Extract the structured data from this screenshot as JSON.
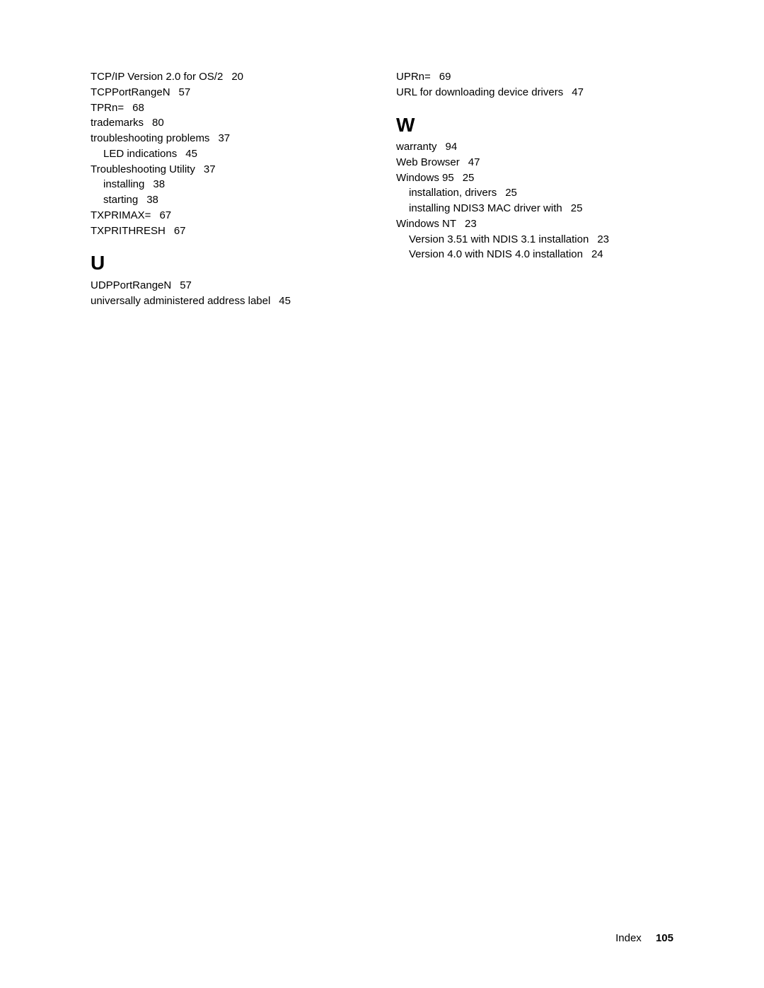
{
  "left": {
    "entries_top": [
      {
        "term": "TCP/IP Version 2.0 for OS/2",
        "page": "20",
        "indent": 0
      },
      {
        "term": "TCPPortRangeN",
        "page": "57",
        "indent": 0
      },
      {
        "term": "TPRn=",
        "page": "68",
        "indent": 0
      },
      {
        "term": "trademarks",
        "page": "80",
        "indent": 0
      },
      {
        "term": "troubleshooting problems",
        "page": "37",
        "indent": 0
      },
      {
        "term": "LED indications",
        "page": "45",
        "indent": 1
      },
      {
        "term": "Troubleshooting Utility",
        "page": "37",
        "indent": 0
      },
      {
        "term": "installing",
        "page": "38",
        "indent": 1
      },
      {
        "term": "starting",
        "page": "38",
        "indent": 1
      },
      {
        "term": "TXPRIMAX=",
        "page": "67",
        "indent": 0
      },
      {
        "term": "TXPRITHRESH",
        "page": "67",
        "indent": 0
      }
    ],
    "heading_u": "U",
    "entries_u": [
      {
        "term": "UDPPortRangeN",
        "page": "57",
        "indent": 0
      },
      {
        "term": "universally administered address label",
        "page": "45",
        "indent": 0
      }
    ]
  },
  "right": {
    "entries_top": [
      {
        "term": "UPRn=",
        "page": "69",
        "indent": 0
      },
      {
        "term": "URL for downloading device drivers",
        "page": "47",
        "indent": 0
      }
    ],
    "heading_w": "W",
    "entries_w": [
      {
        "term": "warranty",
        "page": "94",
        "indent": 0
      },
      {
        "term": "Web Browser",
        "page": "47",
        "indent": 0
      },
      {
        "term": "Windows 95",
        "page": "25",
        "indent": 0
      },
      {
        "term": "installation, drivers",
        "page": "25",
        "indent": 1
      },
      {
        "term": "installing NDIS3 MAC driver with",
        "page": "25",
        "indent": 1
      },
      {
        "term": "Windows NT",
        "page": "23",
        "indent": 0
      },
      {
        "term": "Version 3.51 with NDIS 3.1 installation",
        "page": "23",
        "indent": 1
      },
      {
        "term": "Version 4.0 with NDIS 4.0 installation",
        "page": "24",
        "indent": 1
      }
    ]
  },
  "footer": {
    "label": "Index",
    "page": "105"
  }
}
